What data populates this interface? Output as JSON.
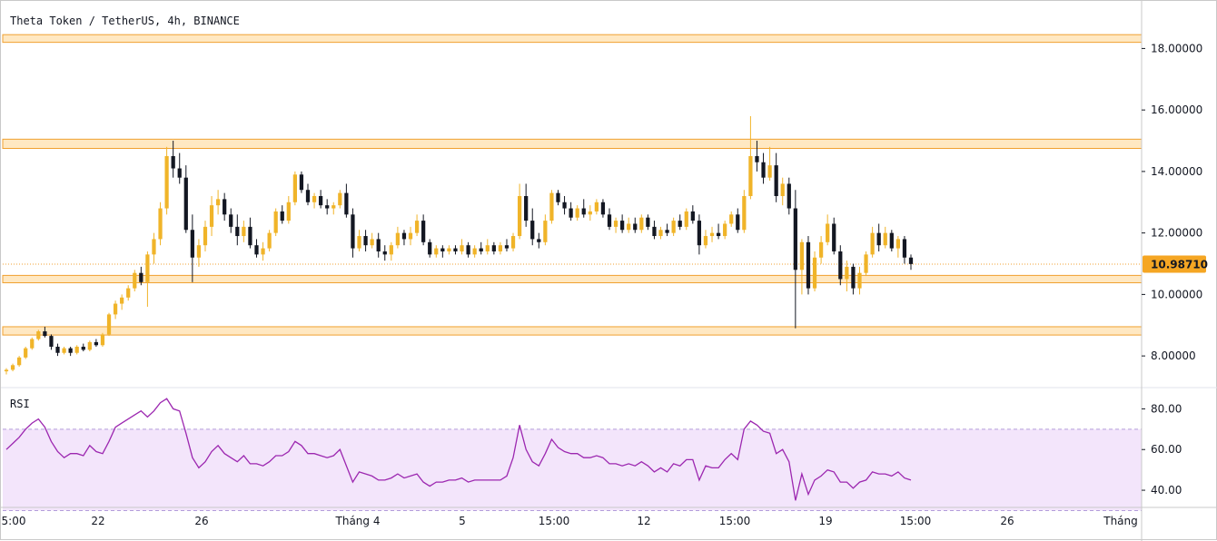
{
  "title": "Theta Token / TetherUS, 4h, BINANCE",
  "indicator_label": "RSI",
  "price_axis": {
    "ticks": [
      "18.00000",
      "16.00000",
      "14.00000",
      "12.00000",
      "10.00000",
      "8.00000"
    ],
    "tick_values": [
      18,
      16,
      14,
      12,
      10,
      8
    ]
  },
  "rsi_axis": {
    "ticks": [
      "80.00",
      "60.00",
      "40.00"
    ],
    "tick_values": [
      80,
      60,
      40
    ]
  },
  "time_axis": {
    "labels": [
      "5:00",
      "22",
      "26",
      "Tháng 4",
      "5",
      "15:00",
      "12",
      "15:00",
      "19",
      "15:00",
      "26",
      "Tháng"
    ]
  },
  "last_price": {
    "label": "10.98710",
    "value": 10.9871
  },
  "colors": {
    "up": "#f0b429",
    "down": "#131722",
    "zone_fill": "#ffe8c2",
    "zone_border": "#f0a030",
    "rsi_line": "#9c27b0",
    "rsi_band": "#f3e5fb",
    "last_price_bg": "#f5a623"
  },
  "chart_data": {
    "type": "candlestick",
    "price_range": [
      7.0,
      19.4
    ],
    "rsi_range": [
      32,
      90
    ],
    "rsi_bands": [
      70,
      30
    ],
    "support_resistance_zones": [
      {
        "low": 18.2,
        "high": 18.45
      },
      {
        "low": 14.75,
        "high": 15.05
      },
      {
        "low": 10.38,
        "high": 10.62
      },
      {
        "low": 8.68,
        "high": 8.95
      }
    ],
    "ohlc": [
      [
        7.5,
        7.6,
        7.4,
        7.55
      ],
      [
        7.55,
        7.75,
        7.5,
        7.7
      ],
      [
        7.7,
        8.0,
        7.65,
        7.95
      ],
      [
        7.95,
        8.3,
        7.9,
        8.25
      ],
      [
        8.25,
        8.6,
        8.2,
        8.55
      ],
      [
        8.55,
        8.85,
        8.5,
        8.8
      ],
      [
        8.8,
        8.95,
        8.6,
        8.65
      ],
      [
        8.65,
        8.7,
        8.2,
        8.3
      ],
      [
        8.3,
        8.4,
        8.0,
        8.1
      ],
      [
        8.1,
        8.3,
        8.05,
        8.25
      ],
      [
        8.25,
        8.3,
        8.0,
        8.1
      ],
      [
        8.1,
        8.35,
        8.05,
        8.3
      ],
      [
        8.3,
        8.4,
        8.15,
        8.2
      ],
      [
        8.2,
        8.5,
        8.15,
        8.45
      ],
      [
        8.45,
        8.55,
        8.3,
        8.35
      ],
      [
        8.35,
        8.75,
        8.3,
        8.7
      ],
      [
        8.7,
        9.4,
        8.65,
        9.35
      ],
      [
        9.35,
        9.8,
        9.2,
        9.7
      ],
      [
        9.7,
        10.0,
        9.5,
        9.9
      ],
      [
        9.9,
        10.3,
        9.8,
        10.2
      ],
      [
        10.2,
        10.8,
        10.1,
        10.7
      ],
      [
        10.7,
        10.9,
        10.3,
        10.4
      ],
      [
        10.4,
        11.4,
        9.6,
        11.3
      ],
      [
        11.3,
        12.0,
        11.0,
        11.8
      ],
      [
        11.8,
        13.0,
        11.6,
        12.8
      ],
      [
        12.8,
        14.8,
        12.6,
        14.5
      ],
      [
        14.5,
        15.0,
        13.8,
        14.1
      ],
      [
        14.1,
        14.6,
        13.6,
        13.8
      ],
      [
        13.8,
        14.2,
        12.0,
        12.1
      ],
      [
        12.1,
        12.6,
        10.4,
        11.2
      ],
      [
        11.2,
        11.8,
        10.9,
        11.6
      ],
      [
        11.6,
        12.4,
        11.4,
        12.2
      ],
      [
        12.2,
        13.2,
        11.9,
        12.9
      ],
      [
        12.9,
        13.4,
        12.6,
        13.1
      ],
      [
        13.1,
        13.3,
        12.4,
        12.6
      ],
      [
        12.6,
        12.8,
        12.0,
        12.2
      ],
      [
        12.2,
        12.6,
        11.6,
        11.9
      ],
      [
        11.9,
        12.4,
        11.7,
        12.2
      ],
      [
        12.2,
        12.5,
        11.5,
        11.6
      ],
      [
        11.6,
        11.8,
        11.2,
        11.3
      ],
      [
        11.3,
        11.7,
        11.1,
        11.5
      ],
      [
        11.5,
        12.1,
        11.4,
        12.0
      ],
      [
        12.0,
        12.8,
        11.9,
        12.7
      ],
      [
        12.7,
        12.9,
        12.3,
        12.4
      ],
      [
        12.4,
        13.2,
        12.3,
        13.0
      ],
      [
        13.0,
        14.0,
        12.9,
        13.9
      ],
      [
        13.9,
        14.0,
        13.3,
        13.4
      ],
      [
        13.4,
        13.6,
        12.9,
        13.0
      ],
      [
        13.0,
        13.3,
        12.8,
        13.2
      ],
      [
        13.2,
        13.4,
        12.8,
        12.9
      ],
      [
        12.9,
        13.1,
        12.6,
        12.8
      ],
      [
        12.8,
        13.0,
        12.6,
        12.9
      ],
      [
        12.9,
        13.4,
        12.8,
        13.3
      ],
      [
        13.3,
        13.6,
        12.5,
        12.6
      ],
      [
        12.6,
        12.8,
        11.2,
        11.5
      ],
      [
        11.5,
        12.1,
        11.4,
        11.9
      ],
      [
        11.9,
        12.1,
        11.4,
        11.6
      ],
      [
        11.6,
        12.0,
        11.5,
        11.8
      ],
      [
        11.8,
        12.0,
        11.2,
        11.4
      ],
      [
        11.4,
        11.6,
        11.1,
        11.3
      ],
      [
        11.3,
        11.7,
        11.1,
        11.6
      ],
      [
        11.6,
        12.2,
        11.5,
        12.0
      ],
      [
        12.0,
        12.1,
        11.6,
        11.8
      ],
      [
        11.8,
        12.2,
        11.6,
        12.0
      ],
      [
        12.0,
        12.6,
        11.9,
        12.4
      ],
      [
        12.4,
        12.6,
        11.6,
        11.7
      ],
      [
        11.7,
        11.8,
        11.2,
        11.3
      ],
      [
        11.3,
        11.6,
        11.2,
        11.5
      ],
      [
        11.5,
        11.6,
        11.2,
        11.4
      ],
      [
        11.4,
        11.6,
        11.3,
        11.5
      ],
      [
        11.5,
        11.6,
        11.3,
        11.4
      ],
      [
        11.4,
        11.8,
        11.3,
        11.6
      ],
      [
        11.6,
        11.7,
        11.2,
        11.3
      ],
      [
        11.3,
        11.6,
        11.2,
        11.5
      ],
      [
        11.5,
        11.7,
        11.3,
        11.4
      ],
      [
        11.4,
        11.8,
        11.3,
        11.6
      ],
      [
        11.6,
        11.7,
        11.3,
        11.4
      ],
      [
        11.4,
        11.7,
        11.3,
        11.6
      ],
      [
        11.6,
        11.8,
        11.4,
        11.5
      ],
      [
        11.5,
        12.0,
        11.4,
        11.9
      ],
      [
        11.9,
        13.6,
        11.8,
        13.2
      ],
      [
        13.2,
        13.6,
        12.2,
        12.4
      ],
      [
        12.4,
        12.8,
        11.6,
        11.8
      ],
      [
        11.8,
        12.0,
        11.5,
        11.7
      ],
      [
        11.7,
        12.6,
        11.6,
        12.4
      ],
      [
        12.4,
        13.4,
        12.3,
        13.3
      ],
      [
        13.3,
        13.4,
        12.9,
        13.0
      ],
      [
        13.0,
        13.2,
        12.6,
        12.8
      ],
      [
        12.8,
        13.0,
        12.4,
        12.5
      ],
      [
        12.5,
        12.9,
        12.4,
        12.8
      ],
      [
        12.8,
        13.1,
        12.5,
        12.6
      ],
      [
        12.6,
        12.9,
        12.4,
        12.7
      ],
      [
        12.7,
        13.1,
        12.6,
        13.0
      ],
      [
        13.0,
        13.1,
        12.5,
        12.6
      ],
      [
        12.6,
        12.8,
        12.1,
        12.2
      ],
      [
        12.2,
        12.5,
        12.0,
        12.4
      ],
      [
        12.4,
        12.6,
        12.0,
        12.1
      ],
      [
        12.1,
        12.5,
        12.0,
        12.3
      ],
      [
        12.3,
        12.5,
        12.0,
        12.1
      ],
      [
        12.1,
        12.6,
        12.0,
        12.5
      ],
      [
        12.5,
        12.6,
        12.1,
        12.2
      ],
      [
        12.2,
        12.4,
        11.8,
        11.9
      ],
      [
        11.9,
        12.2,
        11.8,
        12.1
      ],
      [
        12.1,
        12.3,
        11.9,
        12.0
      ],
      [
        12.0,
        12.5,
        11.9,
        12.4
      ],
      [
        12.4,
        12.6,
        12.1,
        12.2
      ],
      [
        12.2,
        12.8,
        12.1,
        12.7
      ],
      [
        12.7,
        12.9,
        12.3,
        12.4
      ],
      [
        12.4,
        12.6,
        11.3,
        11.6
      ],
      [
        11.6,
        12.1,
        11.5,
        11.9
      ],
      [
        11.9,
        12.2,
        11.7,
        12.0
      ],
      [
        12.0,
        12.3,
        11.8,
        11.9
      ],
      [
        11.9,
        12.4,
        11.8,
        12.3
      ],
      [
        12.3,
        12.7,
        12.2,
        12.6
      ],
      [
        12.6,
        12.8,
        12.0,
        12.1
      ],
      [
        12.1,
        13.4,
        12.0,
        13.2
      ],
      [
        13.2,
        15.8,
        13.1,
        14.5
      ],
      [
        14.5,
        15.0,
        14.0,
        14.3
      ],
      [
        14.3,
        14.6,
        13.6,
        13.8
      ],
      [
        13.8,
        14.8,
        13.7,
        14.2
      ],
      [
        14.2,
        14.6,
        13.0,
        13.2
      ],
      [
        13.2,
        13.8,
        12.9,
        13.6
      ],
      [
        13.6,
        13.8,
        12.6,
        12.8
      ],
      [
        12.8,
        13.4,
        8.9,
        10.8
      ],
      [
        10.8,
        11.8,
        10.0,
        11.7
      ],
      [
        11.7,
        11.9,
        10.0,
        10.2
      ],
      [
        10.2,
        11.4,
        10.1,
        11.2
      ],
      [
        11.2,
        11.9,
        11.0,
        11.7
      ],
      [
        11.7,
        12.6,
        11.6,
        12.3
      ],
      [
        12.3,
        12.5,
        11.3,
        11.4
      ],
      [
        11.4,
        11.6,
        10.3,
        10.5
      ],
      [
        10.5,
        11.1,
        10.1,
        10.9
      ],
      [
        10.9,
        11.0,
        10.0,
        10.2
      ],
      [
        10.2,
        10.9,
        10.0,
        10.7
      ],
      [
        10.7,
        11.4,
        10.6,
        11.3
      ],
      [
        11.3,
        12.2,
        11.2,
        12.0
      ],
      [
        12.0,
        12.3,
        11.4,
        11.6
      ],
      [
        11.6,
        12.2,
        11.5,
        12.0
      ],
      [
        12.0,
        12.1,
        11.4,
        11.5
      ],
      [
        11.5,
        11.9,
        11.2,
        11.8
      ],
      [
        11.8,
        11.9,
        11.0,
        11.2
      ],
      [
        11.2,
        11.3,
        10.8,
        10.99
      ]
    ],
    "rsi": [
      60,
      63,
      66,
      70,
      73,
      75,
      71,
      64,
      59,
      56,
      58,
      58,
      57,
      62,
      59,
      58,
      64,
      71,
      73,
      75,
      77,
      79,
      76,
      79,
      83,
      85,
      80,
      79,
      68,
      56,
      51,
      54,
      59,
      62,
      58,
      56,
      54,
      57,
      53,
      53,
      52,
      54,
      57,
      57,
      59,
      64,
      62,
      58,
      58,
      57,
      56,
      57,
      60,
      52,
      44,
      49,
      48,
      47,
      45,
      45,
      46,
      48,
      46,
      47,
      48,
      44,
      42,
      44,
      44,
      45,
      45,
      46,
      44,
      45,
      45,
      45,
      45,
      45,
      47,
      56,
      72,
      60,
      54,
      52,
      58,
      65,
      61,
      59,
      58,
      58,
      56,
      56,
      57,
      56,
      53,
      53,
      52,
      53,
      52,
      54,
      52,
      49,
      51,
      49,
      53,
      52,
      55,
      55,
      45,
      52,
      51,
      51,
      55,
      58,
      55,
      70,
      74,
      72,
      69,
      68,
      58,
      60,
      54,
      35,
      48,
      38,
      45,
      47,
      50,
      49,
      44,
      44,
      41,
      44,
      45,
      49,
      48,
      48,
      47,
      49,
      46,
      45
    ]
  }
}
